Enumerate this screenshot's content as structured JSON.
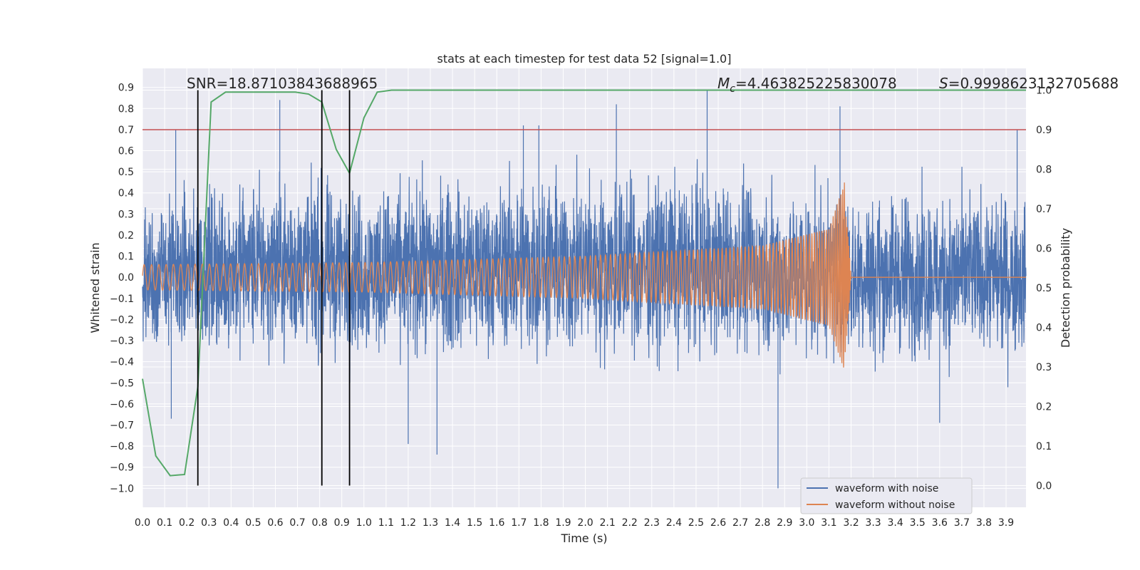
{
  "chart_data": {
    "type": "line",
    "title": "stats at each timestep for test data 52 [signal=1.0]",
    "xlabel": "Time (s)",
    "ylabel": "Whitened strain",
    "y2label": "Detection probability",
    "xlim": [
      0.0,
      3.99
    ],
    "ylim": [
      -1.09,
      0.99
    ],
    "y2lim": [
      -0.055,
      1.055
    ],
    "xticks": [
      "0.0",
      "0.1",
      "0.2",
      "0.3",
      "0.4",
      "0.5",
      "0.6",
      "0.7",
      "0.8",
      "0.9",
      "1.0",
      "1.1",
      "1.2",
      "1.3",
      "1.4",
      "1.5",
      "1.6",
      "1.7",
      "1.8",
      "1.9",
      "2.0",
      "2.1",
      "2.2",
      "2.3",
      "2.4",
      "2.5",
      "2.6",
      "2.7",
      "2.8",
      "2.9",
      "3.0",
      "3.1",
      "3.2",
      "3.3",
      "3.4",
      "3.5",
      "3.6",
      "3.7",
      "3.8",
      "3.9"
    ],
    "yticks": [
      "0.9",
      "0.8",
      "0.7",
      "0.6",
      "0.5",
      "0.4",
      "0.3",
      "0.2",
      "0.1",
      "0.0",
      "−0.1",
      "−0.2",
      "−0.3",
      "−0.4",
      "−0.5",
      "−0.6",
      "−0.7",
      "−0.8",
      "−0.9",
      "−1.0"
    ],
    "y2ticks": [
      "1.0",
      "0.9",
      "0.8",
      "0.7",
      "0.6",
      "0.5",
      "0.4",
      "0.3",
      "0.2",
      "0.1",
      "0.0"
    ],
    "annotations": {
      "snr": "SNR=18.87103843688965",
      "mc_symbol": "M",
      "mc_sub": "c",
      "mc_value": "=4.463825225830078",
      "s_symbol": "S",
      "s_value": "=0.9998623132705688"
    },
    "threshold": {
      "value": 0.9,
      "axis": "y2",
      "color": "#c44e52"
    },
    "vlines": [
      0.25,
      0.81,
      0.935
    ],
    "grid": true,
    "legend_position": "lower-right",
    "series": [
      {
        "name": "waveform with noise",
        "color": "#4c72b0",
        "axis": "y",
        "envelope": {
          "x": [
            0.0,
            0.5,
            1.0,
            1.5,
            2.0,
            2.5,
            3.0,
            3.99
          ],
          "upper": [
            0.45,
            0.6,
            0.55,
            0.6,
            0.6,
            0.6,
            0.55,
            0.5
          ],
          "lower": [
            -0.45,
            -0.5,
            -0.5,
            -0.5,
            -0.5,
            -0.5,
            -0.5,
            -0.5
          ]
        },
        "spikes": [
          {
            "x": 0.15,
            "y": 0.7
          },
          {
            "x": 0.62,
            "y": 0.84
          },
          {
            "x": 1.72,
            "y": 0.72
          },
          {
            "x": 1.79,
            "y": 0.72
          },
          {
            "x": 2.14,
            "y": 0.82
          },
          {
            "x": 2.55,
            "y": 0.89
          },
          {
            "x": 3.15,
            "y": 0.81
          },
          {
            "x": 3.95,
            "y": 0.7
          },
          {
            "x": 1.33,
            "y": -0.84
          },
          {
            "x": 2.87,
            "y": -1.0
          },
          {
            "x": 1.2,
            "y": -0.79
          },
          {
            "x": 0.13,
            "y": -0.67
          },
          {
            "x": 3.6,
            "y": -0.69
          }
        ]
      },
      {
        "name": "waveform without noise",
        "color": "#dd8452",
        "axis": "y",
        "chirp": {
          "t_merge": 3.18,
          "amp_points": [
            [
              0.0,
              0.06
            ],
            [
              1.0,
              0.07
            ],
            [
              2.0,
              0.1
            ],
            [
              2.8,
              0.15
            ],
            [
              3.1,
              0.23
            ],
            [
              3.17,
              0.45
            ],
            [
              3.19,
              0.0
            ]
          ],
          "freq_start_hz": 30
        }
      },
      {
        "name": "",
        "color": "#55a868",
        "axis": "y2",
        "x": [
          0.0,
          0.06,
          0.125,
          0.19,
          0.25,
          0.31,
          0.375,
          0.44,
          0.5,
          0.56,
          0.625,
          0.69,
          0.75,
          0.81,
          0.875,
          0.935,
          1.0,
          1.06,
          1.125,
          1.5,
          2.0,
          2.5,
          3.0,
          3.5,
          3.99
        ],
        "values": [
          0.27,
          0.075,
          0.025,
          0.028,
          0.25,
          0.97,
          0.995,
          0.995,
          0.995,
          0.995,
          0.995,
          0.995,
          0.99,
          0.97,
          0.85,
          0.79,
          0.93,
          0.995,
          1.0,
          1.0,
          1.0,
          1.0,
          1.0,
          1.0,
          1.0
        ]
      }
    ]
  }
}
